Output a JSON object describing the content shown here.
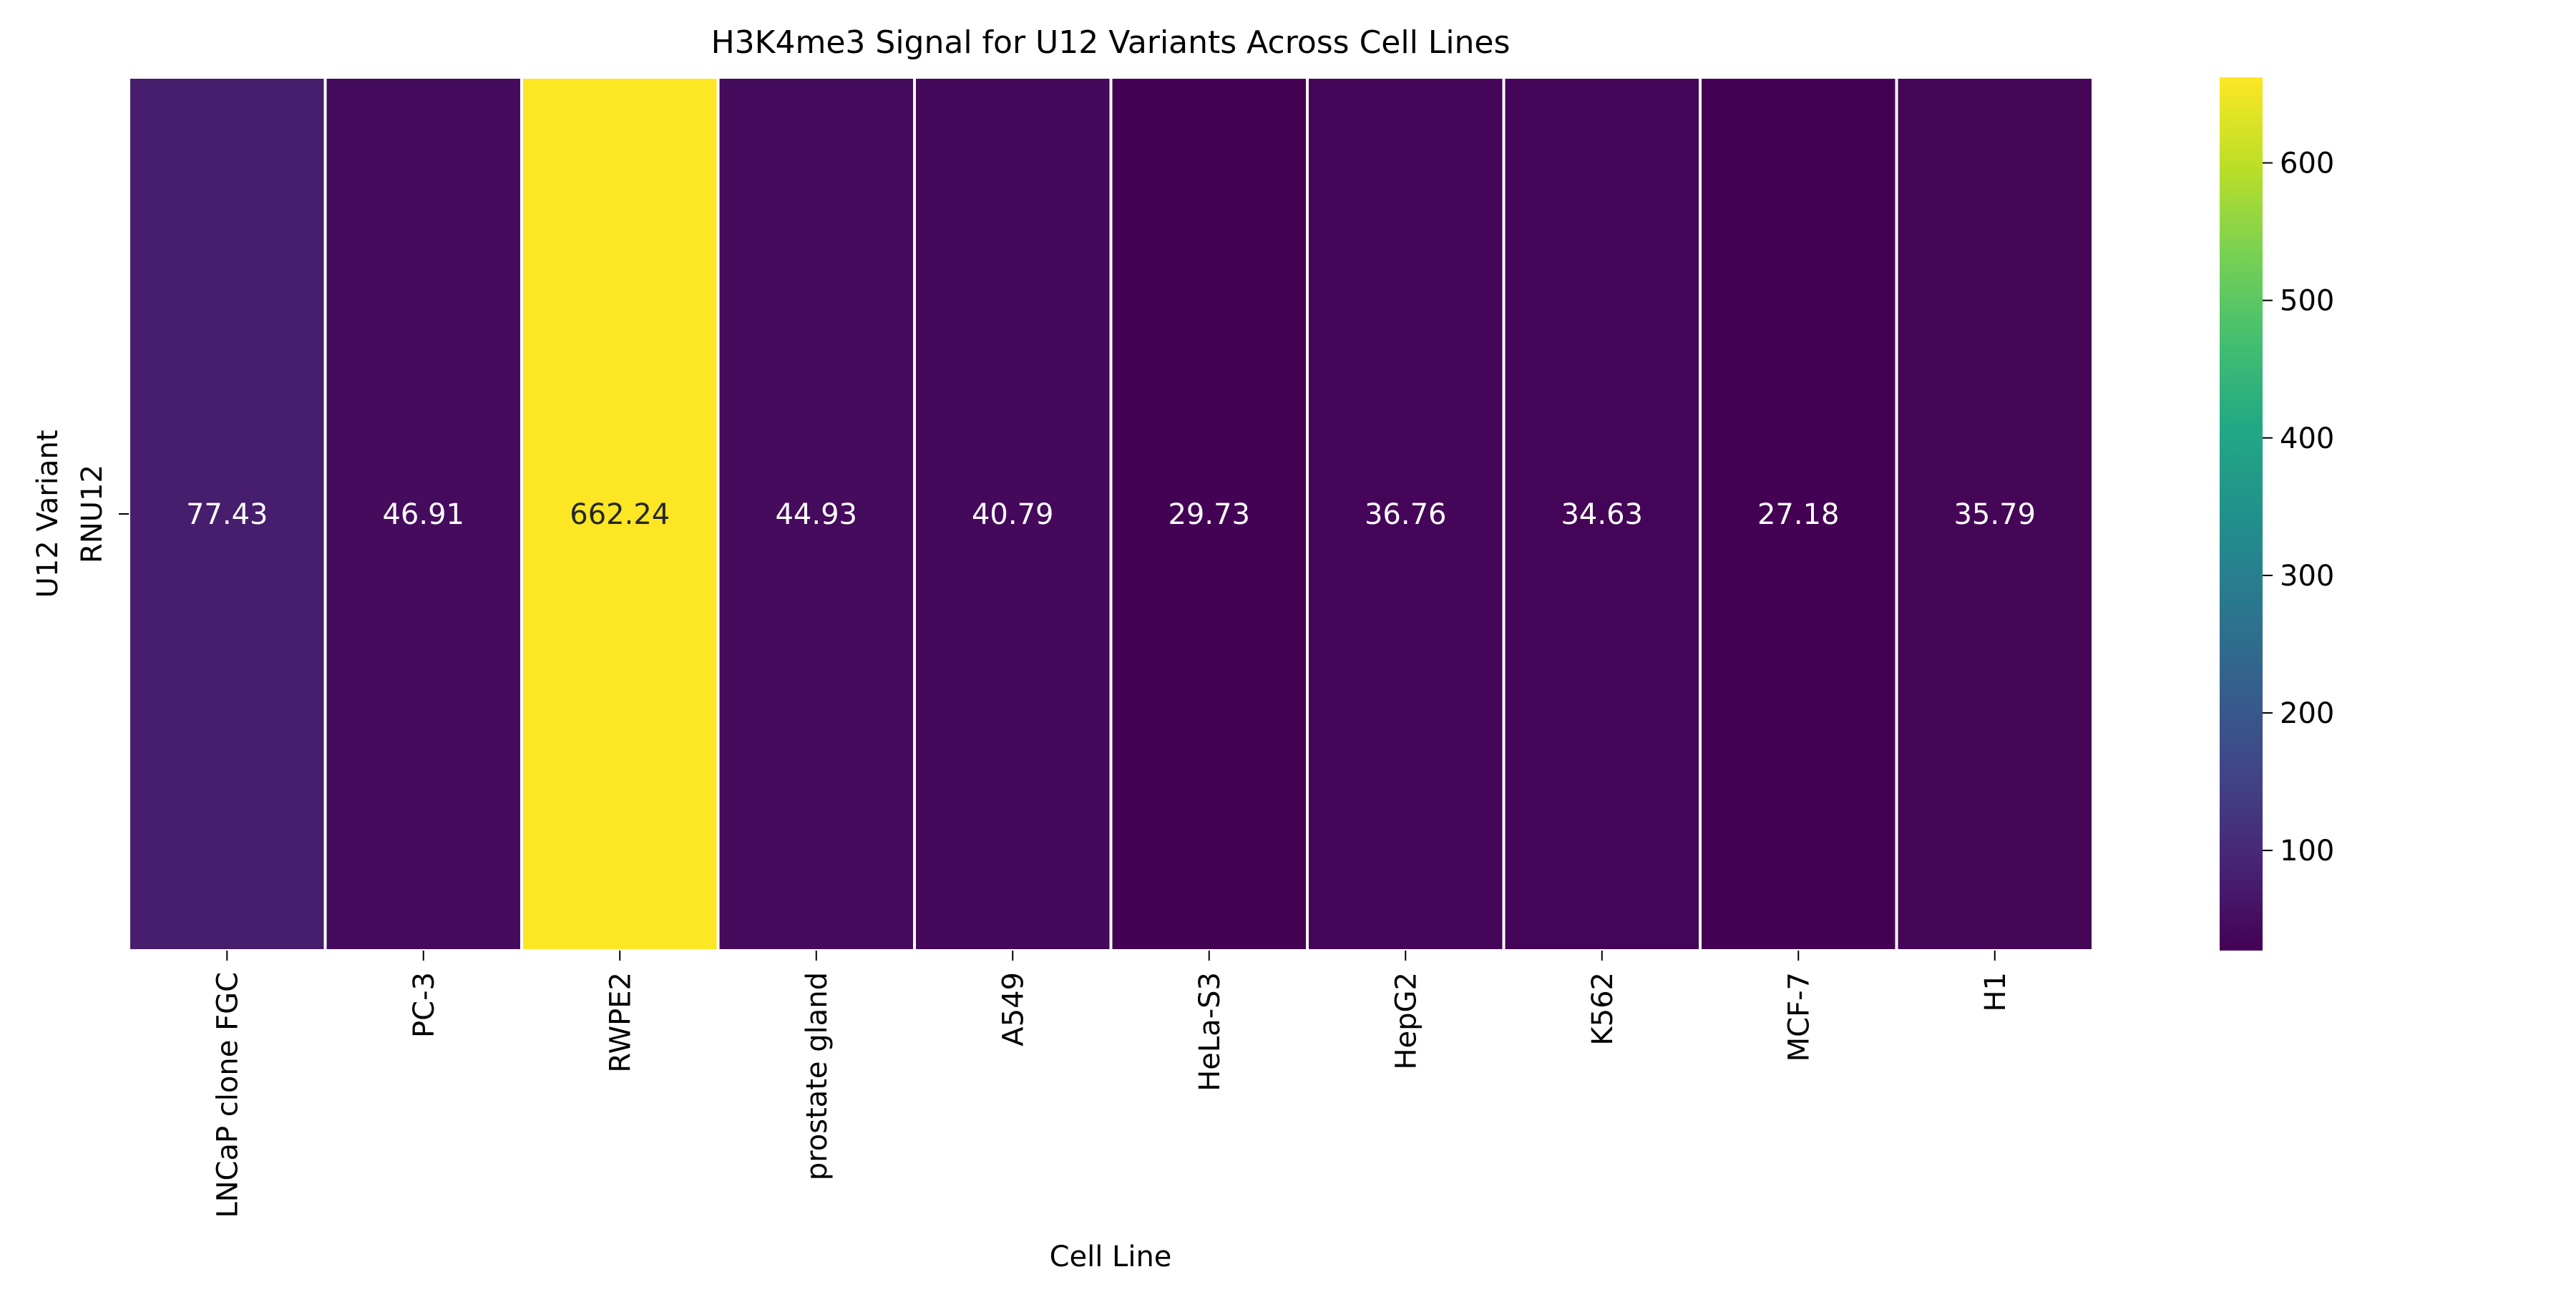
{
  "chart_data": {
    "type": "heatmap",
    "title": "H3K4me3 Signal for U12 Variants Across Cell Lines",
    "xlabel": "Cell Line",
    "ylabel": "U12 Variant",
    "rows": [
      "RNU12"
    ],
    "columns": [
      "LNCaP clone FGC",
      "PC-3",
      "RWPE2",
      "prostate gland",
      "A549",
      "HeLa-S3",
      "HepG2",
      "K562",
      "MCF-7",
      "H1"
    ],
    "values": [
      [
        77.43,
        46.91,
        662.24,
        44.93,
        40.79,
        29.73,
        36.76,
        34.63,
        27.18,
        35.79
      ]
    ],
    "value_labels": [
      [
        "77.43",
        "46.91",
        "662.24",
        "44.93",
        "40.79",
        "29.73",
        "36.76",
        "34.63",
        "27.18",
        "35.79"
      ]
    ],
    "colormap": "viridis",
    "colorbar": {
      "range": [
        27.18,
        662.24
      ],
      "ticks": [
        100,
        200,
        300,
        400,
        500,
        600
      ],
      "tick_labels": [
        "100",
        "200",
        "300",
        "400",
        "500",
        "600"
      ]
    },
    "grid": false,
    "legend": "colorbar right"
  }
}
